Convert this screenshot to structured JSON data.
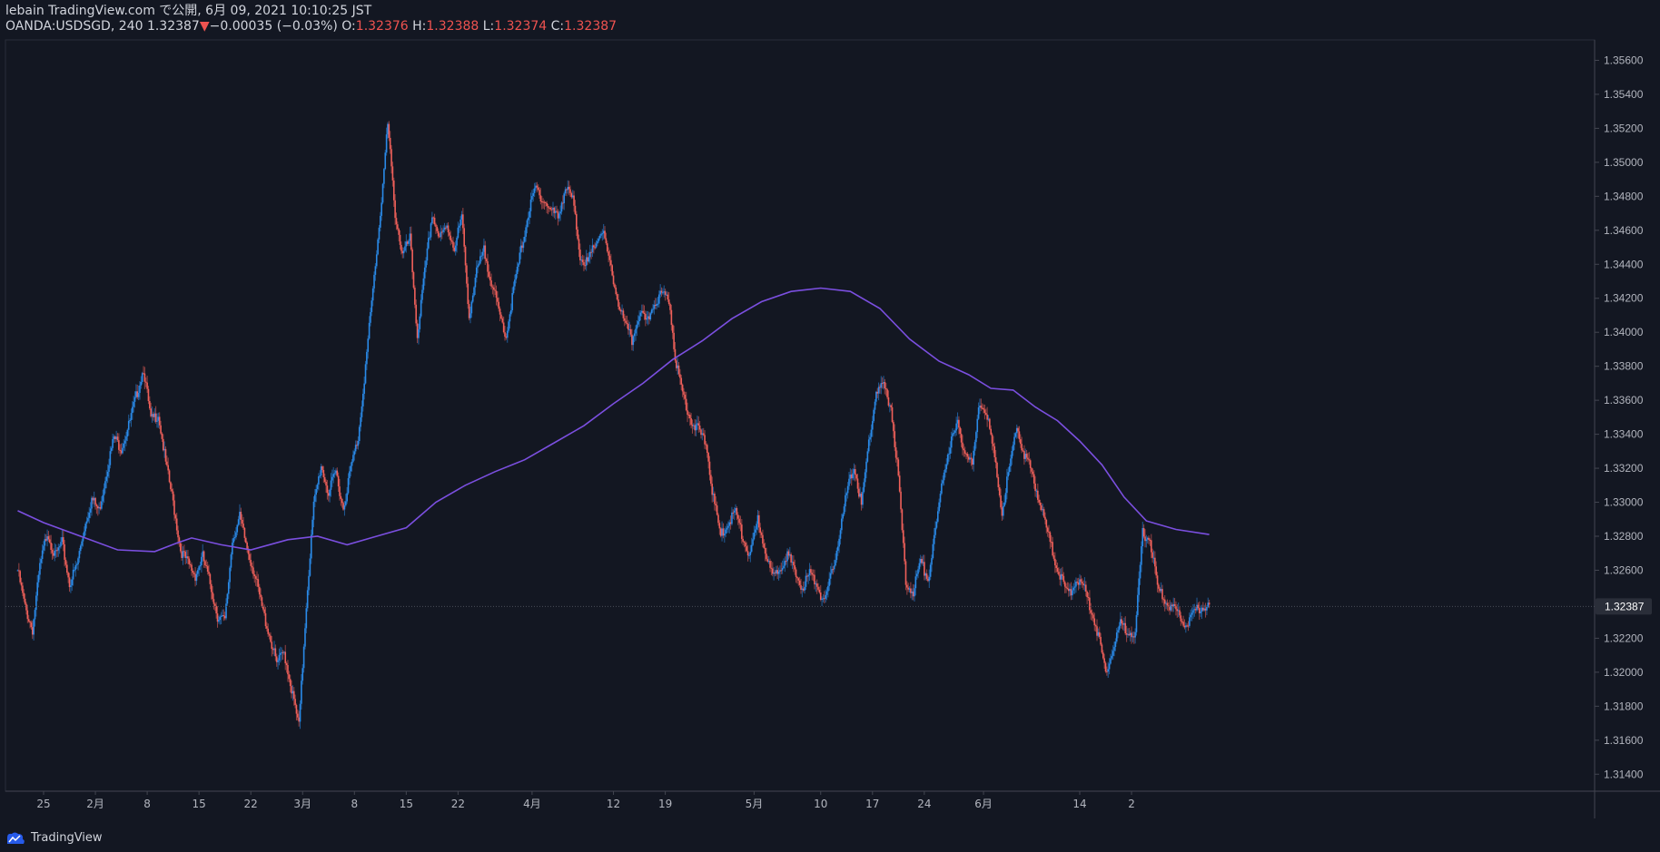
{
  "header": {
    "published": "lebain TradingView.com で公開, 6月 09, 2021 10:10:25 JST",
    "symbol": "OANDA:USDSGD",
    "interval": "240",
    "last": "1.32387",
    "change_arrow": "▼",
    "change": "−0.00035 (−0.03%)",
    "o_label": "O:",
    "o": "1.32376",
    "h_label": "H:",
    "h": "1.32388",
    "l_label": "L:",
    "l": "1.32374",
    "c_label": "C:",
    "c": "1.32387"
  },
  "branding": {
    "label": "TradingView",
    "icon": "tradingview-cloud-icon"
  },
  "colors": {
    "background": "#131722",
    "up": "#2a8ae8",
    "down": "#f0605a",
    "ma": "#7b4fe0",
    "axis_text": "#b2b5be",
    "price_label_bg": "#2a2e39"
  },
  "chart_data": {
    "type": "candlestick",
    "title": "",
    "xlabel": "",
    "ylabel": "",
    "ylim": [
      1.313,
      1.3572
    ],
    "y_ticks": [
      "1.35600",
      "1.35400",
      "1.35200",
      "1.35000",
      "1.34800",
      "1.34600",
      "1.34400",
      "1.34200",
      "1.34000",
      "1.33800",
      "1.33600",
      "1.33400",
      "1.33200",
      "1.33000",
      "1.32800",
      "1.32600",
      "1.32200",
      "1.32000",
      "1.31800",
      "1.31600",
      "1.31400"
    ],
    "x_ticks": [
      {
        "label": "25",
        "day": 0
      },
      {
        "label": "2月",
        "day": 7
      },
      {
        "label": "8",
        "day": 14
      },
      {
        "label": "15",
        "day": 21
      },
      {
        "label": "22",
        "day": 28
      },
      {
        "label": "3月",
        "day": 35
      },
      {
        "label": "8",
        "day": 42
      },
      {
        "label": "15",
        "day": 49
      },
      {
        "label": "22",
        "day": 56
      },
      {
        "label": "4月",
        "day": 66
      },
      {
        "label": "12",
        "day": 77
      },
      {
        "label": "19",
        "day": 84
      },
      {
        "label": "5月",
        "day": 96
      },
      {
        "label": "10",
        "day": 105
      },
      {
        "label": "17",
        "day": 112
      },
      {
        "label": "24",
        "day": 119
      },
      {
        "label": "6月",
        "day": 127
      },
      {
        "label": "14",
        "day": 140
      },
      {
        "label": "2",
        "day": 147
      }
    ],
    "current_price": "1.32387",
    "current_price_value": 1.32387,
    "price_path": [
      [
        -3.5,
        1.326
      ],
      [
        -2.5,
        1.3238
      ],
      [
        -1.5,
        1.3225
      ],
      [
        -0.5,
        1.3262
      ],
      [
        0.5,
        1.3283
      ],
      [
        1.5,
        1.3268
      ],
      [
        2.5,
        1.3276
      ],
      [
        3.5,
        1.3252
      ],
      [
        4.5,
        1.3263
      ],
      [
        5.5,
        1.3285
      ],
      [
        6.5,
        1.3302
      ],
      [
        7.5,
        1.3295
      ],
      [
        8.5,
        1.3318
      ],
      [
        9.5,
        1.3338
      ],
      [
        10.5,
        1.3332
      ],
      [
        11.5,
        1.3345
      ],
      [
        12.5,
        1.3362
      ],
      [
        13.5,
        1.3379
      ],
      [
        14.5,
        1.3348
      ],
      [
        15.5,
        1.3352
      ],
      [
        16.5,
        1.3323
      ],
      [
        17.5,
        1.33
      ],
      [
        18.5,
        1.3272
      ],
      [
        19.5,
        1.3264
      ],
      [
        20.5,
        1.3257
      ],
      [
        21.5,
        1.3268
      ],
      [
        22.5,
        1.3252
      ],
      [
        23.5,
        1.3233
      ],
      [
        24.5,
        1.323
      ],
      [
        25.5,
        1.3278
      ],
      [
        26.5,
        1.3291
      ],
      [
        27.5,
        1.3273
      ],
      [
        28.5,
        1.3258
      ],
      [
        29.5,
        1.3238
      ],
      [
        30.5,
        1.3222
      ],
      [
        31.5,
        1.3205
      ],
      [
        32.5,
        1.3212
      ],
      [
        33.5,
        1.319
      ],
      [
        34.5,
        1.3168
      ],
      [
        35.5,
        1.324
      ],
      [
        36.5,
        1.3298
      ],
      [
        37.5,
        1.3322
      ],
      [
        38.5,
        1.3305
      ],
      [
        39.5,
        1.3318
      ],
      [
        40.5,
        1.3296
      ],
      [
        41.5,
        1.332
      ],
      [
        42.5,
        1.3338
      ],
      [
        43.5,
        1.338
      ],
      [
        44.5,
        1.3425
      ],
      [
        45.5,
        1.347
      ],
      [
        46.5,
        1.3522
      ],
      [
        47.5,
        1.347
      ],
      [
        48.5,
        1.3445
      ],
      [
        49.5,
        1.3455
      ],
      [
        50.5,
        1.3398
      ],
      [
        51.5,
        1.3435
      ],
      [
        52.5,
        1.347
      ],
      [
        53.5,
        1.3455
      ],
      [
        54.5,
        1.3462
      ],
      [
        55.5,
        1.345
      ],
      [
        56.5,
        1.3468
      ],
      [
        57.5,
        1.341
      ],
      [
        58.5,
        1.3435
      ],
      [
        59.5,
        1.3448
      ],
      [
        60.5,
        1.343
      ],
      [
        61.5,
        1.3412
      ],
      [
        62.5,
        1.3398
      ],
      [
        63.5,
        1.3425
      ],
      [
        64.5,
        1.3448
      ],
      [
        65.5,
        1.347
      ],
      [
        66.5,
        1.3485
      ],
      [
        67.5,
        1.3478
      ],
      [
        68.5,
        1.3472
      ],
      [
        69.5,
        1.3468
      ],
      [
        70.5,
        1.3485
      ],
      [
        71.5,
        1.3478
      ],
      [
        72.5,
        1.3445
      ],
      [
        73.5,
        1.344
      ],
      [
        74.5,
        1.3452
      ],
      [
        75.5,
        1.346
      ],
      [
        76.5,
        1.344
      ],
      [
        77.5,
        1.342
      ],
      [
        78.5,
        1.3405
      ],
      [
        79.5,
        1.3395
      ],
      [
        80.5,
        1.3412
      ],
      [
        81.5,
        1.3405
      ],
      [
        82.5,
        1.3418
      ],
      [
        83.5,
        1.3422
      ],
      [
        84.5,
        1.342
      ],
      [
        85.5,
        1.338
      ],
      [
        86.5,
        1.3362
      ],
      [
        87.5,
        1.3348
      ],
      [
        88.5,
        1.3342
      ],
      [
        89.5,
        1.3335
      ],
      [
        90.5,
        1.3302
      ],
      [
        91.5,
        1.328
      ],
      [
        92.5,
        1.3288
      ],
      [
        93.5,
        1.3295
      ],
      [
        94.5,
        1.3278
      ],
      [
        95.5,
        1.3268
      ],
      [
        96.5,
        1.329
      ],
      [
        97.5,
        1.3272
      ],
      [
        98.5,
        1.3255
      ],
      [
        99.5,
        1.3262
      ],
      [
        100.5,
        1.327
      ],
      [
        101.5,
        1.3258
      ],
      [
        102.5,
        1.325
      ],
      [
        103.5,
        1.3258
      ],
      [
        104.5,
        1.3252
      ],
      [
        105.5,
        1.324
      ],
      [
        106.5,
        1.3258
      ],
      [
        107.5,
        1.328
      ],
      [
        108.5,
        1.3305
      ],
      [
        109.5,
        1.3322
      ],
      [
        110.5,
        1.3298
      ],
      [
        111.5,
        1.3335
      ],
      [
        112.5,
        1.3365
      ],
      [
        113.5,
        1.3368
      ],
      [
        114.5,
        1.3356
      ],
      [
        115.5,
        1.3315
      ],
      [
        116.5,
        1.3252
      ],
      [
        117.5,
        1.3248
      ],
      [
        118.5,
        1.3265
      ],
      [
        119.5,
        1.3255
      ],
      [
        120.5,
        1.3282
      ],
      [
        121.5,
        1.3315
      ],
      [
        122.5,
        1.3335
      ],
      [
        123.5,
        1.3345
      ],
      [
        124.5,
        1.333
      ],
      [
        125.5,
        1.3322
      ],
      [
        126.5,
        1.336
      ],
      [
        127.5,
        1.3352
      ],
      [
        128.5,
        1.3325
      ],
      [
        129.5,
        1.3295
      ],
      [
        130.5,
        1.332
      ],
      [
        131.5,
        1.3345
      ],
      [
        132.5,
        1.3328
      ],
      [
        133.5,
        1.3318
      ],
      [
        134.5,
        1.3302
      ],
      [
        135.5,
        1.3285
      ],
      [
        136.5,
        1.3268
      ],
      [
        137.5,
        1.3255
      ],
      [
        138.5,
        1.3245
      ],
      [
        139.5,
        1.3255
      ],
      [
        140.5,
        1.325
      ],
      [
        141.5,
        1.3238
      ],
      [
        142.5,
        1.3222
      ],
      [
        143.5,
        1.32
      ],
      [
        144.5,
        1.3215
      ],
      [
        145.5,
        1.3228
      ],
      [
        146.5,
        1.3225
      ],
      [
        147.5,
        1.3222
      ],
      [
        148.5,
        1.3282
      ],
      [
        149.5,
        1.3278
      ],
      [
        150.5,
        1.325
      ],
      [
        151.5,
        1.3242
      ],
      [
        152.5,
        1.3238
      ],
      [
        153.5,
        1.3232
      ],
      [
        154.5,
        1.3228
      ],
      [
        155.5,
        1.3235
      ],
      [
        156.5,
        1.3239
      ],
      [
        157.5,
        1.32387
      ]
    ],
    "series": [
      {
        "kind": "moving_average",
        "points": [
          [
            -3.5,
            1.3295
          ],
          [
            0,
            1.3288
          ],
          [
            5,
            1.328
          ],
          [
            10,
            1.3272
          ],
          [
            15,
            1.3271
          ],
          [
            18,
            1.3276
          ],
          [
            20,
            1.3279
          ],
          [
            24,
            1.3275
          ],
          [
            28,
            1.3272
          ],
          [
            33,
            1.3278
          ],
          [
            37,
            1.328
          ],
          [
            41,
            1.3275
          ],
          [
            45,
            1.328
          ],
          [
            49,
            1.3285
          ],
          [
            53,
            1.33
          ],
          [
            57,
            1.331
          ],
          [
            61,
            1.3318
          ],
          [
            65,
            1.3325
          ],
          [
            69,
            1.3335
          ],
          [
            73,
            1.3345
          ],
          [
            77,
            1.3358
          ],
          [
            81,
            1.337
          ],
          [
            85,
            1.3384
          ],
          [
            89,
            1.3395
          ],
          [
            93,
            1.3408
          ],
          [
            97,
            1.3418
          ],
          [
            101,
            1.3424
          ],
          [
            105,
            1.3426
          ],
          [
            109,
            1.3424
          ],
          [
            113,
            1.3414
          ],
          [
            117,
            1.3396
          ],
          [
            121,
            1.3383
          ],
          [
            125,
            1.3375
          ],
          [
            128,
            1.3367
          ],
          [
            131,
            1.3366
          ],
          [
            134,
            1.3356
          ],
          [
            137,
            1.3348
          ],
          [
            140,
            1.3336
          ],
          [
            143,
            1.3322
          ],
          [
            146,
            1.3303
          ],
          [
            149,
            1.3289
          ],
          [
            153,
            1.3284
          ],
          [
            157.5,
            1.3281
          ]
        ]
      }
    ]
  }
}
